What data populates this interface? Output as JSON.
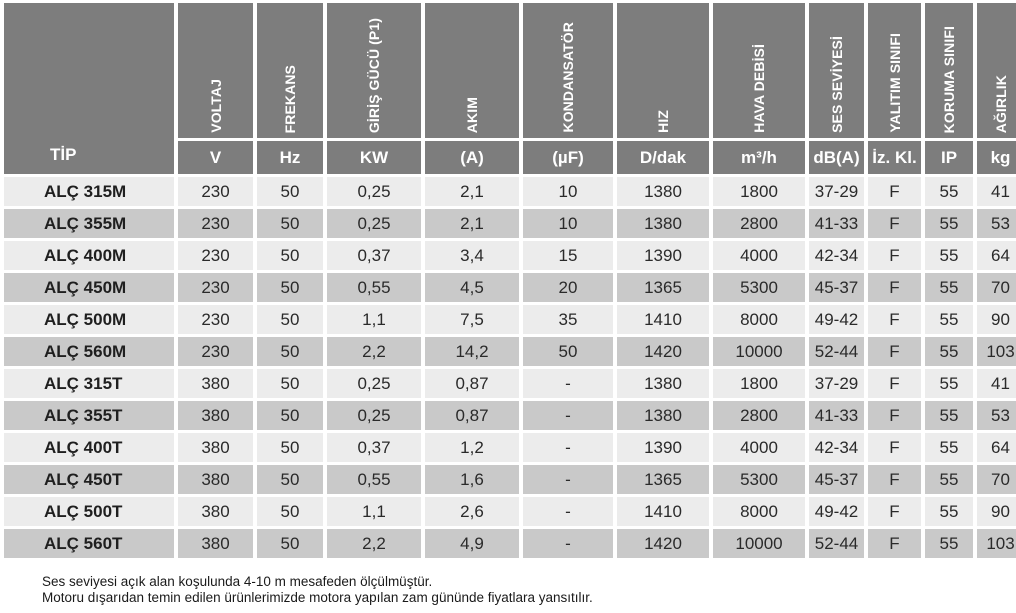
{
  "header": {
    "type_label": "TİP",
    "columns": [
      {
        "label": "VOLTAJ",
        "unit": "V"
      },
      {
        "label": "FREKANS",
        "unit": "Hz"
      },
      {
        "label": "GİRİŞ GÜCÜ (P1)",
        "unit": "KW"
      },
      {
        "label": "AKIM",
        "unit": "(A)"
      },
      {
        "label": "KONDANSATÖR",
        "unit": "(µF)"
      },
      {
        "label": "HIZ",
        "unit": "D/dak"
      },
      {
        "label": "HAVA DEBİSİ",
        "unit": "m³/h"
      },
      {
        "label": "SES SEVİYESİ",
        "unit": "dB(A)"
      },
      {
        "label": "YALITIM SINIFI",
        "unit": "İz. Kl."
      },
      {
        "label": "KORUMA SINIFI",
        "unit": "IP"
      },
      {
        "label": "AĞIRLIK",
        "unit": "kg"
      }
    ]
  },
  "rows": [
    [
      "ALÇ 315M",
      "230",
      "50",
      "0,25",
      "2,1",
      "10",
      "1380",
      "1800",
      "37-29",
      "F",
      "55",
      "41"
    ],
    [
      "ALÇ 355M",
      "230",
      "50",
      "0,25",
      "2,1",
      "10",
      "1380",
      "2800",
      "41-33",
      "F",
      "55",
      "53"
    ],
    [
      "ALÇ 400M",
      "230",
      "50",
      "0,37",
      "3,4",
      "15",
      "1390",
      "4000",
      "42-34",
      "F",
      "55",
      "64"
    ],
    [
      "ALÇ 450M",
      "230",
      "50",
      "0,55",
      "4,5",
      "20",
      "1365",
      "5300",
      "45-37",
      "F",
      "55",
      "70"
    ],
    [
      "ALÇ 500M",
      "230",
      "50",
      "1,1",
      "7,5",
      "35",
      "1410",
      "8000",
      "49-42",
      "F",
      "55",
      "90"
    ],
    [
      "ALÇ 560M",
      "230",
      "50",
      "2,2",
      "14,2",
      "50",
      "1420",
      "10000",
      "52-44",
      "F",
      "55",
      "103"
    ],
    [
      "ALÇ 315T",
      "380",
      "50",
      "0,25",
      "0,87",
      "-",
      "1380",
      "1800",
      "37-29",
      "F",
      "55",
      "41"
    ],
    [
      "ALÇ 355T",
      "380",
      "50",
      "0,25",
      "0,87",
      "-",
      "1380",
      "2800",
      "41-33",
      "F",
      "55",
      "53"
    ],
    [
      "ALÇ 400T",
      "380",
      "50",
      "0,37",
      "1,2",
      "-",
      "1390",
      "4000",
      "42-34",
      "F",
      "55",
      "64"
    ],
    [
      "ALÇ 450T",
      "380",
      "50",
      "0,55",
      "1,6",
      "-",
      "1365",
      "5300",
      "45-37",
      "F",
      "55",
      "70"
    ],
    [
      "ALÇ 500T",
      "380",
      "50",
      "1,1",
      "2,6",
      "-",
      "1410",
      "8000",
      "49-42",
      "F",
      "55",
      "90"
    ],
    [
      "ALÇ 560T",
      "380",
      "50",
      "2,2",
      "4,9",
      "-",
      "1420",
      "10000",
      "52-44",
      "F",
      "55",
      "103"
    ]
  ],
  "notes": [
    "Ses seviyesi açık alan koşulunda 4-10 m mesafeden ölçülmüştür.",
    "Motoru dışarıdan temin edilen ürünlerimizde motora yapılan zam gününde fiyatlara yansıtılır."
  ],
  "colors": {
    "header_bg": "#7d7d7d",
    "row_light": "#ececec",
    "row_dark": "#c9c9c9"
  }
}
